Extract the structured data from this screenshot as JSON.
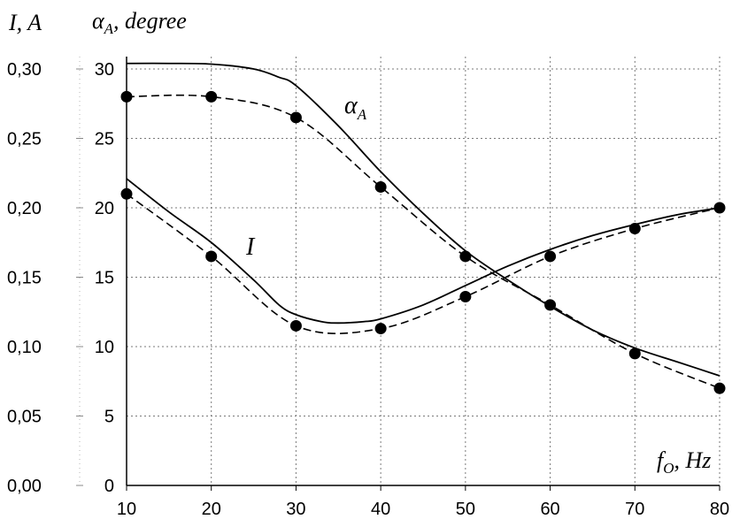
{
  "chart_data": {
    "type": "line",
    "x_axis": {
      "label_main": "f",
      "label_sub": "O",
      "label_rest": ", Hz",
      "range": [
        10,
        80
      ],
      "ticks": [
        10,
        20,
        30,
        40,
        50,
        60,
        70,
        80
      ],
      "tick_labels": [
        "10",
        "20",
        "30",
        "40",
        "50",
        "60",
        "70",
        "80"
      ]
    },
    "y_axis_left": {
      "label": "I, A",
      "range": [
        0,
        0.3
      ],
      "ticks": [
        0,
        0.05,
        0.1,
        0.15,
        0.2,
        0.25,
        0.3
      ],
      "tick_labels": [
        "0,00",
        "0,05",
        "0,10",
        "0,15",
        "0,20",
        "0,25",
        "0,30"
      ]
    },
    "y_axis_right": {
      "label_main": "α",
      "label_sub": "A",
      "label_rest": ", degree",
      "range": [
        0,
        30
      ],
      "ticks": [
        0,
        5,
        10,
        15,
        20,
        25,
        30
      ],
      "tick_labels": [
        "0",
        "5",
        "10",
        "15",
        "20",
        "25",
        "30"
      ]
    },
    "grid": true,
    "series": [
      {
        "label_main": "α",
        "label_sub": "A",
        "axis": "right",
        "line_style": "solid",
        "markers": false,
        "x": [
          10,
          15,
          20,
          25,
          28,
          30,
          35,
          40,
          45,
          50,
          55,
          60,
          65,
          70,
          75,
          80
        ],
        "y": [
          30.4,
          30.4,
          30.35,
          30.0,
          29.4,
          28.8,
          25.9,
          22.6,
          19.6,
          16.9,
          14.8,
          12.9,
          11.2,
          9.9,
          8.9,
          7.9
        ]
      },
      {
        "axis": "right",
        "line_style": "dashed",
        "markers": true,
        "x": [
          10,
          20,
          30,
          40,
          50,
          60,
          70,
          80
        ],
        "y": [
          28.0,
          28.0,
          26.5,
          21.5,
          16.5,
          13.0,
          9.5,
          7.0
        ]
      },
      {
        "label_main": "I",
        "axis": "left",
        "line_style": "solid",
        "markers": false,
        "x": [
          10,
          15,
          20,
          25,
          28,
          30,
          33,
          35,
          38,
          40,
          45,
          50,
          55,
          60,
          65,
          70,
          75,
          80
        ],
        "y": [
          0.221,
          0.197,
          0.175,
          0.148,
          0.13,
          0.123,
          0.118,
          0.117,
          0.118,
          0.12,
          0.13,
          0.144,
          0.158,
          0.17,
          0.18,
          0.188,
          0.195,
          0.2
        ]
      },
      {
        "axis": "left",
        "line_style": "dashed",
        "markers": true,
        "x": [
          10,
          20,
          30,
          40,
          50,
          60,
          70,
          80
        ],
        "y": [
          0.21,
          0.165,
          0.115,
          0.113,
          0.136,
          0.165,
          0.185,
          0.2
        ]
      }
    ]
  }
}
